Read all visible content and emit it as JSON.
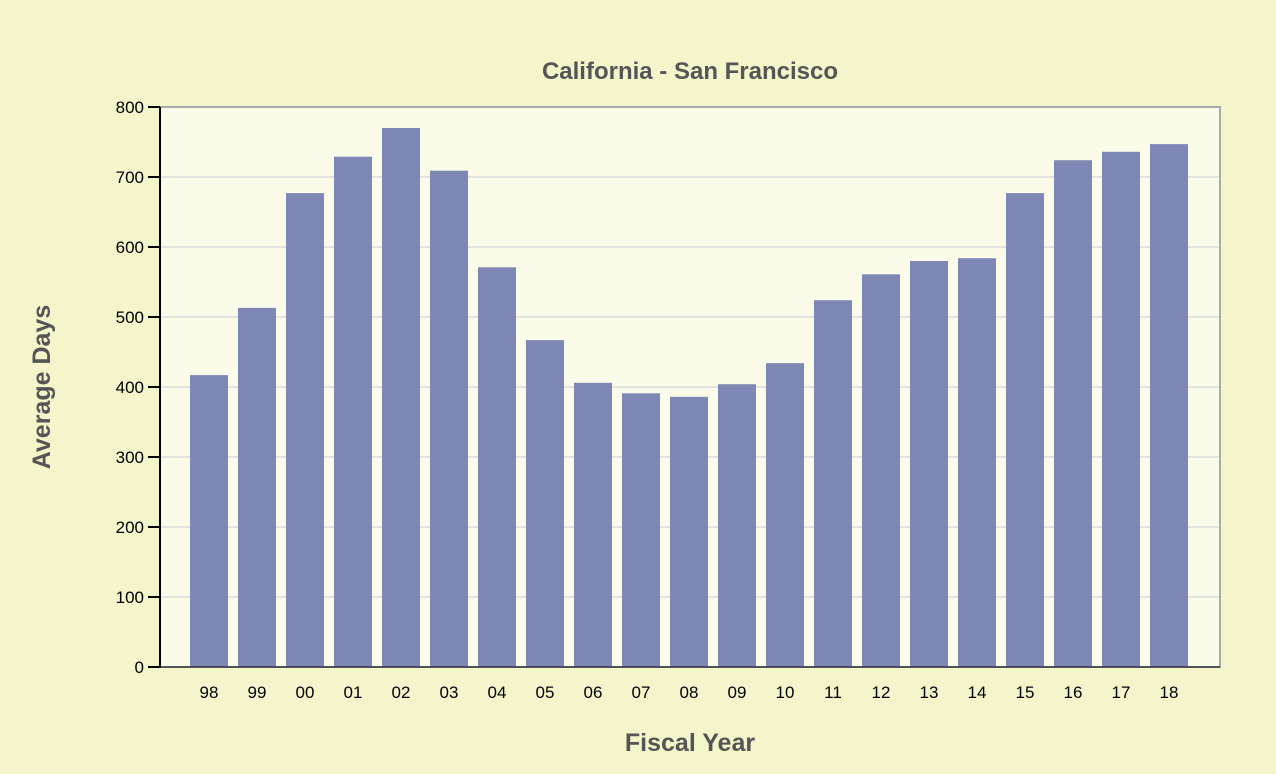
{
  "chart_data": {
    "type": "bar",
    "title": "California - San Francisco",
    "xlabel": "Fiscal Year",
    "ylabel": "Average Days",
    "categories": [
      "98",
      "99",
      "00",
      "01",
      "02",
      "03",
      "04",
      "05",
      "06",
      "07",
      "08",
      "09",
      "10",
      "11",
      "12",
      "13",
      "14",
      "15",
      "16",
      "17",
      "18"
    ],
    "values": [
      417,
      513,
      677,
      729,
      770,
      709,
      571,
      467,
      406,
      391,
      386,
      404,
      434,
      524,
      561,
      580,
      584,
      677,
      724,
      736,
      747
    ],
    "ylim": [
      0,
      800
    ],
    "yticks": [
      0,
      100,
      200,
      300,
      400,
      500,
      600,
      700,
      800
    ],
    "grid": true,
    "colors": {
      "bar": "#7f87b5",
      "plot_bg": "#fbfbea",
      "page_bg": "#f5f5cc",
      "grid": "#dddddd"
    }
  }
}
